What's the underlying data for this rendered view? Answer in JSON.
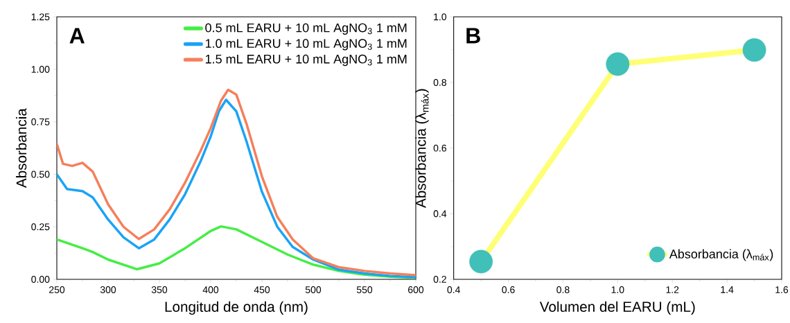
{
  "chart_data": [
    {
      "type": "line",
      "xlabel": "Longitud de onda (nm)",
      "ylabel": "Absorbancia",
      "annotations": [
        "A"
      ],
      "legend": "top right",
      "xlim": [
        250,
        600
      ],
      "xticks": [
        250,
        300,
        350,
        400,
        450,
        500,
        550,
        600
      ],
      "ylim": [
        0,
        1.25
      ],
      "yticks": [
        {
          "value": 0,
          "label": "0.00"
        },
        {
          "value": 0.25,
          "label": "0.25"
        },
        {
          "value": 0.5,
          "label": "0.50"
        },
        {
          "value": 0.75,
          "label": "0.75"
        },
        {
          "value": 1,
          "label": "1.00"
        },
        {
          "value": 1.25,
          "label": "1.25"
        }
      ],
      "series": [
        {
          "name": "0.5 mL EARU + 10 mL AgNO$_{3}$ 1 mM",
          "color": "#44ee44",
          "x": [
            250,
            275,
            285,
            300,
            328,
            350,
            375,
            400,
            410,
            425,
            450,
            475,
            500,
            525,
            550,
            575,
            600
          ],
          "values": [
            0.19,
            0.148,
            0.13,
            0.094,
            0.048,
            0.076,
            0.148,
            0.23,
            0.252,
            0.238,
            0.178,
            0.118,
            0.07,
            0.04,
            0.022,
            0.012,
            0.007
          ]
        },
        {
          "name": "1.0 mL EARU + 10 mL AgNO$_{3}$ 1 mM",
          "color": "#1aa3f5",
          "x": [
            250,
            260,
            275,
            285,
            300,
            315,
            330,
            345,
            360,
            375,
            390,
            400,
            408,
            415,
            425,
            435,
            450,
            465,
            480,
            500,
            525,
            550,
            575,
            600
          ],
          "values": [
            0.5,
            0.43,
            0.42,
            0.39,
            0.285,
            0.2,
            0.148,
            0.19,
            0.285,
            0.405,
            0.56,
            0.68,
            0.8,
            0.855,
            0.8,
            0.656,
            0.417,
            0.25,
            0.154,
            0.094,
            0.046,
            0.028,
            0.016,
            0.01
          ]
        },
        {
          "name": "1.5 mL EARU + 10 mL AgNO$_{3}$ 1 mM",
          "color": "#f57f5b",
          "x": [
            250,
            256,
            265,
            275,
            285,
            300,
            315,
            330,
            345,
            360,
            375,
            390,
            400,
            410,
            417,
            425,
            435,
            450,
            465,
            480,
            500,
            525,
            550,
            575,
            600
          ],
          "values": [
            0.645,
            0.55,
            0.54,
            0.555,
            0.513,
            0.357,
            0.25,
            0.192,
            0.238,
            0.333,
            0.46,
            0.61,
            0.72,
            0.85,
            0.903,
            0.88,
            0.74,
            0.49,
            0.297,
            0.19,
            0.1,
            0.058,
            0.04,
            0.028,
            0.02
          ]
        }
      ]
    },
    {
      "type": "line",
      "xlabel": "Volumen del EARU (mL)",
      "ylabel": "Absorbancia (λ$_{máx}$)",
      "annotations": [
        "B"
      ],
      "legend": "bottom right",
      "marker": "circle",
      "xlim": [
        0.4,
        1.6
      ],
      "xticks": [
        0.4,
        0.6,
        0.8,
        {
          "value": 1,
          "label": "1.0"
        },
        1.2,
        1.4,
        1.6
      ],
      "ylim": [
        0.2,
        1
      ],
      "yticks": [
        0.2,
        0.4,
        0.6,
        0.8,
        {
          "value": 1,
          "label": "1.0"
        }
      ],
      "series": [
        {
          "name": "Absorbancia (λ$_{máx}$)",
          "color": "#ffff77",
          "colors": [
            "#40c0b8",
            "#40c0b8",
            "#40c0b8"
          ],
          "x": [
            0.5,
            1.0,
            1.5
          ],
          "values": [
            0.254,
            0.856,
            0.899
          ]
        }
      ]
    }
  ]
}
